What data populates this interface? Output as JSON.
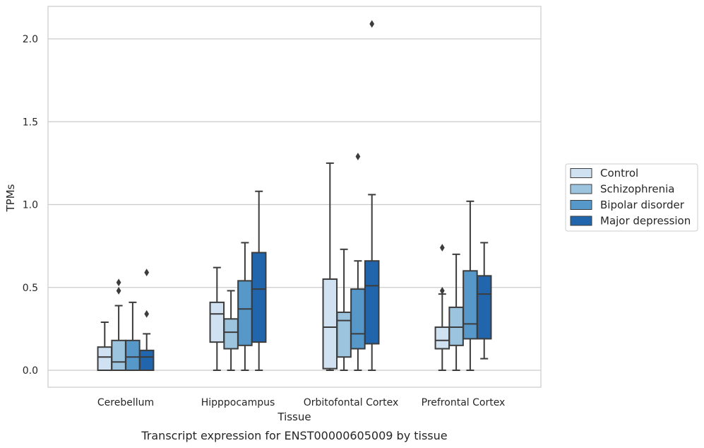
{
  "chart_data": {
    "type": "boxplot",
    "title": "",
    "caption": "Transcript expression for ENST00000605009 by tissue",
    "xlabel": "Tissue",
    "ylabel": "TPMs",
    "ylim": [
      -0.1,
      2.2
    ],
    "yticks": [
      0.0,
      0.5,
      1.0,
      1.5,
      2.0
    ],
    "ytick_labels": [
      "0.0",
      "0.5",
      "1.0",
      "1.5",
      "2.0"
    ],
    "grid": "horizontal",
    "legend_position": "right",
    "categories": [
      "Cerebellum",
      "Hipppocampus",
      "Orbitofontal Cortex",
      "Prefrontal Cortex"
    ],
    "series": [
      {
        "name": "Control",
        "color": "#d0e1f2",
        "boxes": [
          {
            "whislo": 0.0,
            "q1": 0.0,
            "med": 0.08,
            "q3": 0.14,
            "whishi": 0.29,
            "fliers": []
          },
          {
            "whislo": 0.0,
            "q1": 0.17,
            "med": 0.34,
            "q3": 0.41,
            "whishi": 0.62,
            "fliers": []
          },
          {
            "whislo": 0.0,
            "q1": 0.01,
            "med": 0.26,
            "q3": 0.55,
            "whishi": 1.25,
            "fliers": []
          },
          {
            "whislo": 0.0,
            "q1": 0.13,
            "med": 0.18,
            "q3": 0.26,
            "whishi": 0.46,
            "fliers": [
              0.48,
              0.74
            ]
          }
        ]
      },
      {
        "name": "Schizophrenia",
        "color": "#9dc4de",
        "boxes": [
          {
            "whislo": 0.0,
            "q1": 0.0,
            "med": 0.05,
            "q3": 0.18,
            "whishi": 0.39,
            "fliers": [
              0.48,
              0.53
            ]
          },
          {
            "whislo": 0.0,
            "q1": 0.13,
            "med": 0.23,
            "q3": 0.31,
            "whishi": 0.48,
            "fliers": []
          },
          {
            "whislo": 0.0,
            "q1": 0.08,
            "med": 0.3,
            "q3": 0.35,
            "whishi": 0.73,
            "fliers": []
          },
          {
            "whislo": 0.0,
            "q1": 0.15,
            "med": 0.26,
            "q3": 0.38,
            "whishi": 0.7,
            "fliers": []
          }
        ]
      },
      {
        "name": "Bipolar disorder",
        "color": "#5598c9",
        "boxes": [
          {
            "whislo": 0.0,
            "q1": 0.0,
            "med": 0.08,
            "q3": 0.18,
            "whishi": 0.41,
            "fliers": []
          },
          {
            "whislo": 0.0,
            "q1": 0.15,
            "med": 0.37,
            "q3": 0.54,
            "whishi": 0.77,
            "fliers": []
          },
          {
            "whislo": 0.0,
            "q1": 0.13,
            "med": 0.22,
            "q3": 0.49,
            "whishi": 0.66,
            "fliers": [
              1.29
            ]
          },
          {
            "whislo": 0.0,
            "q1": 0.19,
            "med": 0.28,
            "q3": 0.6,
            "whishi": 1.02,
            "fliers": []
          }
        ]
      },
      {
        "name": "Major depression",
        "color": "#2166ac",
        "boxes": [
          {
            "whislo": 0.0,
            "q1": 0.0,
            "med": 0.08,
            "q3": 0.12,
            "whishi": 0.22,
            "fliers": [
              0.34,
              0.59
            ]
          },
          {
            "whislo": 0.0,
            "q1": 0.17,
            "med": 0.49,
            "q3": 0.71,
            "whishi": 1.08,
            "fliers": []
          },
          {
            "whislo": 0.0,
            "q1": 0.16,
            "med": 0.51,
            "q3": 0.66,
            "whishi": 1.06,
            "fliers": [
              2.09
            ]
          },
          {
            "whislo": 0.07,
            "q1": 0.19,
            "med": 0.46,
            "q3": 0.57,
            "whishi": 0.77,
            "fliers": []
          }
        ]
      }
    ]
  }
}
